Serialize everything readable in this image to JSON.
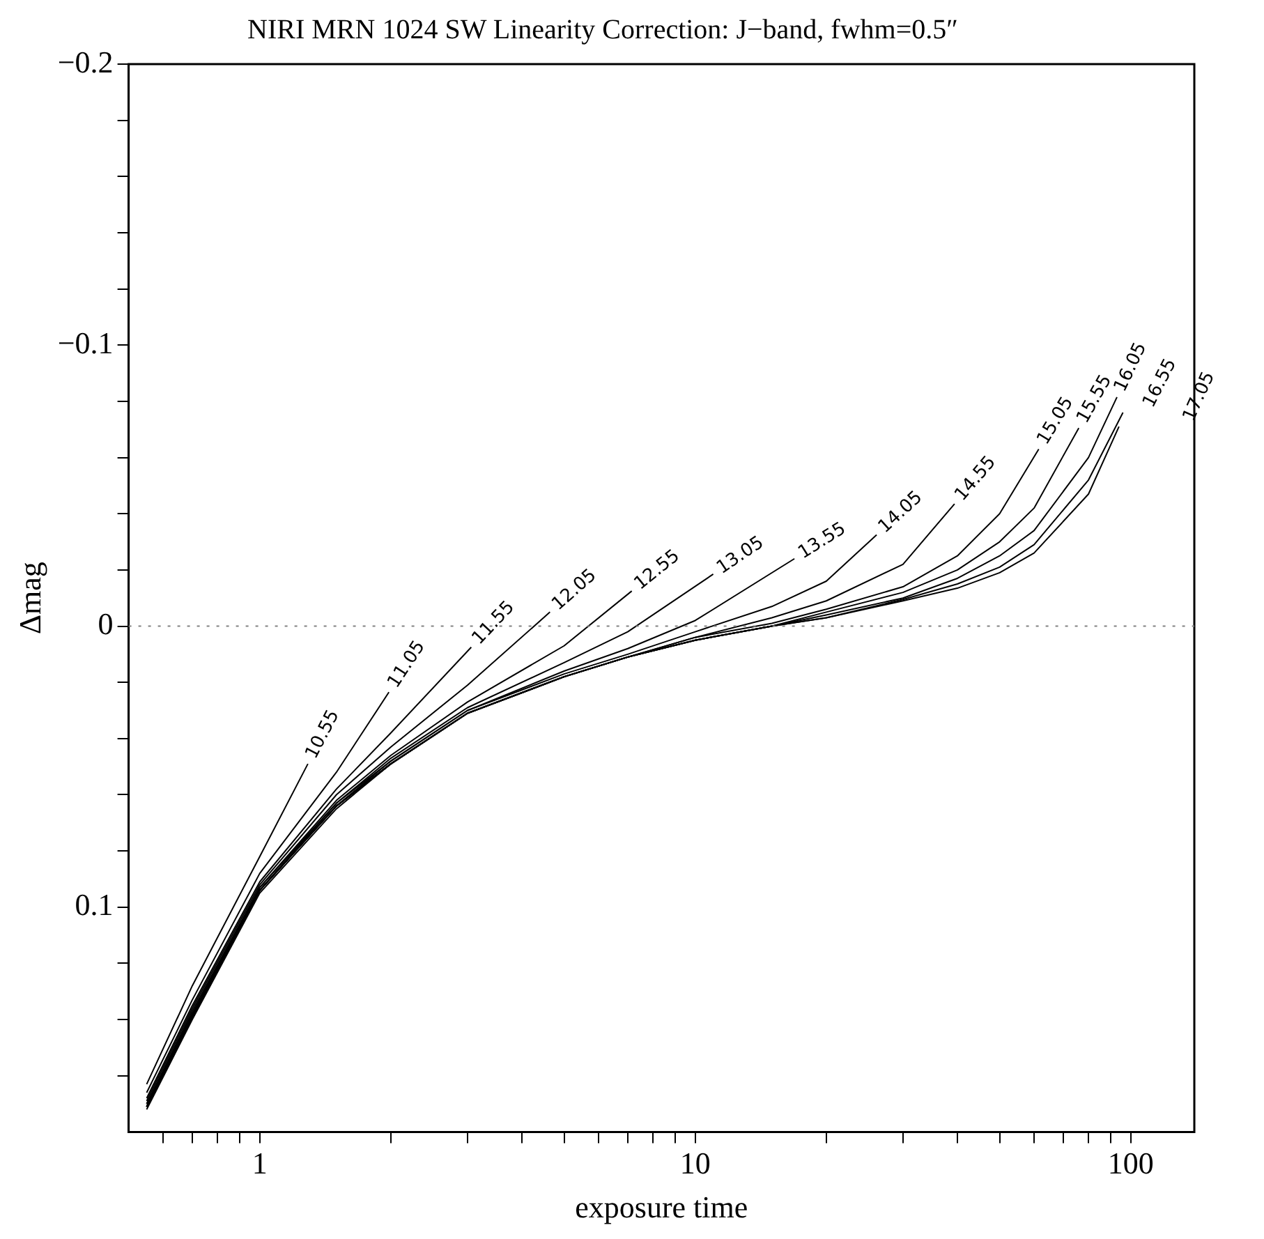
{
  "chart_data": {
    "type": "line",
    "title": "NIRI MRN 1024 SW Linearity Correction: J−band, fwhm=0.5″",
    "xlabel": "exposure time",
    "ylabel": "Δmag",
    "log": "x",
    "marker": "none",
    "xlim": [
      0.5,
      140
    ],
    "ylim": [
      0.18,
      -0.2
    ],
    "xticks": [
      {
        "value": 0.6,
        "label": null
      },
      {
        "value": 0.7,
        "label": null
      },
      {
        "value": 0.8,
        "label": null
      },
      {
        "value": 0.9,
        "label": null
      },
      1,
      {
        "value": 2,
        "label": null
      },
      {
        "value": 3,
        "label": null
      },
      {
        "value": 4,
        "label": null
      },
      {
        "value": 5,
        "label": null
      },
      {
        "value": 6,
        "label": null
      },
      {
        "value": 7,
        "label": null
      },
      {
        "value": 8,
        "label": null
      },
      {
        "value": 9,
        "label": null
      },
      10,
      {
        "value": 20,
        "label": null
      },
      {
        "value": 30,
        "label": null
      },
      {
        "value": 40,
        "label": null
      },
      {
        "value": 50,
        "label": null
      },
      {
        "value": 60,
        "label": null
      },
      {
        "value": 70,
        "label": null
      },
      {
        "value": 80,
        "label": null
      },
      {
        "value": 90,
        "label": null
      },
      100
    ],
    "yticks": [
      {
        "value": -0.2,
        "label": "−0.2"
      },
      {
        "value": -0.18,
        "label": null
      },
      {
        "value": -0.16,
        "label": null
      },
      {
        "value": -0.14,
        "label": null
      },
      {
        "value": -0.12,
        "label": null
      },
      {
        "value": -0.1,
        "label": "−0.1"
      },
      {
        "value": -0.08,
        "label": null
      },
      {
        "value": -0.06,
        "label": null
      },
      {
        "value": -0.04,
        "label": null
      },
      {
        "value": -0.02,
        "label": null
      },
      0,
      {
        "value": 0.02,
        "label": null
      },
      {
        "value": 0.04,
        "label": null
      },
      {
        "value": 0.06,
        "label": null
      },
      {
        "value": 0.08,
        "label": null
      },
      0.1,
      {
        "value": 0.12,
        "label": null
      },
      {
        "value": 0.14,
        "label": null
      },
      {
        "value": 0.16,
        "label": null
      }
    ],
    "ref_lines": [
      {
        "axis": "y",
        "value": 0,
        "color": "#808080",
        "line_style": "dotted"
      }
    ],
    "series": [
      {
        "name": "10.55",
        "color": "#000000",
        "x": [
          0.55,
          0.7,
          1,
          1.29
        ],
        "values": [
          0.163,
          0.128,
          0.082,
          0.049
        ]
      },
      {
        "name": "11.05",
        "color": "#000000",
        "x": [
          0.55,
          0.7,
          1,
          1.5,
          1.98
        ],
        "values": [
          0.166,
          0.133,
          0.088,
          0.052,
          0.0235
        ]
      },
      {
        "name": "11.55",
        "color": "#000000",
        "x": [
          0.55,
          0.7,
          1,
          1.5,
          2,
          3.06
        ],
        "values": [
          0.168,
          0.135,
          0.091,
          0.058,
          0.038,
          0.0075
        ]
      },
      {
        "name": "12.05",
        "color": "#000000",
        "x": [
          0.55,
          0.7,
          1,
          1.5,
          2,
          3,
          4.64
        ],
        "values": [
          0.169,
          0.136,
          0.092,
          0.06,
          0.043,
          0.021,
          -0.005
        ]
      },
      {
        "name": "12.55",
        "color": "#000000",
        "x": [
          0.55,
          0.7,
          1,
          1.5,
          2,
          3,
          5,
          7.15
        ],
        "values": [
          0.17,
          0.137,
          0.093,
          0.062,
          0.046,
          0.027,
          0.007,
          -0.0125
        ]
      },
      {
        "name": "13.05",
        "color": "#000000",
        "x": [
          0.55,
          0.7,
          1,
          1.5,
          2,
          3,
          5,
          7,
          11
        ],
        "values": [
          0.17,
          0.138,
          0.093,
          0.063,
          0.047,
          0.029,
          0.013,
          0.002,
          -0.0185
        ]
      },
      {
        "name": "13.55",
        "color": "#000000",
        "x": [
          0.55,
          0.7,
          1,
          1.5,
          2,
          3,
          5,
          7,
          10,
          16.9
        ],
        "values": [
          0.171,
          0.138,
          0.094,
          0.063,
          0.048,
          0.03,
          0.016,
          0.008,
          -0.002,
          -0.024
        ]
      },
      {
        "name": "14.05",
        "color": "#000000",
        "x": [
          0.55,
          0.7,
          1,
          1.5,
          2,
          3,
          5,
          7,
          10,
          15,
          20,
          26.1
        ],
        "values": [
          0.171,
          0.139,
          0.094,
          0.064,
          0.048,
          0.03,
          0.017,
          0.01,
          0.002,
          -0.007,
          -0.016,
          -0.0325
        ]
      },
      {
        "name": "14.55",
        "color": "#000000",
        "x": [
          0.55,
          0.7,
          1,
          1.5,
          2,
          3,
          5,
          7,
          10,
          15,
          20,
          30,
          39.4
        ],
        "values": [
          0.171,
          0.139,
          0.094,
          0.064,
          0.049,
          0.031,
          0.018,
          0.011,
          0.004,
          -0.003,
          -0.009,
          -0.022,
          -0.0435
        ]
      },
      {
        "name": "15.05",
        "color": "#000000",
        "x": [
          0.55,
          0.7,
          1,
          1.5,
          2,
          3,
          5,
          7,
          10,
          15,
          20,
          30,
          40,
          50,
          61.5
        ],
        "values": [
          0.171,
          0.139,
          0.094,
          0.064,
          0.049,
          0.031,
          0.018,
          0.011,
          0.004,
          -0.001,
          -0.006,
          -0.014,
          -0.025,
          -0.04,
          -0.063
        ]
      },
      {
        "name": "15.55",
        "color": "#000000",
        "x": [
          0.55,
          0.7,
          1,
          1.5,
          2,
          3,
          5,
          7,
          10,
          15,
          20,
          30,
          40,
          50,
          60,
          76
        ],
        "values": [
          0.171,
          0.139,
          0.094,
          0.064,
          0.049,
          0.031,
          0.018,
          0.011,
          0.005,
          0.0,
          -0.005,
          -0.012,
          -0.02,
          -0.03,
          -0.042,
          -0.0705
        ]
      },
      {
        "name": "16.05",
        "color": "#000000",
        "x": [
          0.55,
          0.7,
          1,
          1.5,
          2,
          3,
          5,
          7,
          10,
          15,
          20,
          30,
          40,
          50,
          60,
          80,
          93
        ],
        "values": [
          0.171,
          0.139,
          0.094,
          0.064,
          0.049,
          0.031,
          0.018,
          0.011,
          0.005,
          0.0,
          -0.004,
          -0.01,
          -0.017,
          -0.025,
          -0.034,
          -0.06,
          -0.0815
        ]
      },
      {
        "name": "16.55",
        "color": "#000000",
        "x": [
          0.55,
          0.7,
          1,
          1.5,
          2,
          3,
          5,
          7,
          10,
          15,
          20,
          30,
          40,
          50,
          60,
          80,
          96
        ],
        "values": [
          0.171,
          0.139,
          0.094,
          0.064,
          0.049,
          0.031,
          0.018,
          0.011,
          0.005,
          0.0,
          -0.003,
          -0.0095,
          -0.015,
          -0.021,
          -0.029,
          -0.052,
          -0.076
        ]
      },
      {
        "name": "17.05",
        "color": "#000000",
        "x": [
          0.55,
          0.7,
          1,
          1.5,
          2,
          3,
          5,
          7,
          10,
          15,
          20,
          30,
          40,
          50,
          60,
          80,
          94
        ],
        "values": [
          0.172,
          0.14,
          0.095,
          0.065,
          0.049,
          0.031,
          0.018,
          0.011,
          0.005,
          0.0,
          -0.003,
          -0.009,
          -0.0135,
          -0.019,
          -0.026,
          -0.047,
          -0.071
        ]
      }
    ]
  }
}
